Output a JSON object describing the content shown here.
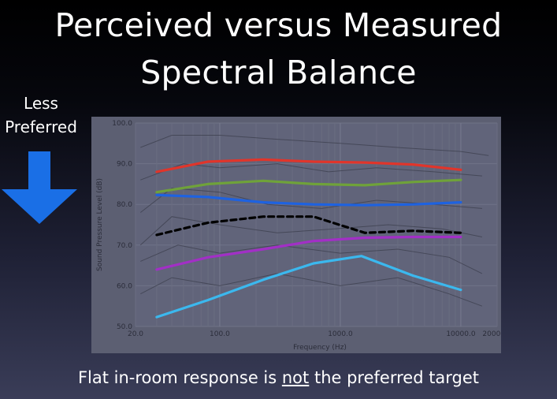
{
  "slide": {
    "title_line1": "Perceived versus Measured",
    "title_line2": "Spectral Balance",
    "side_label_line1": "Less",
    "side_label_line2": "Preferred",
    "arrow_icon": "down-arrow-icon",
    "caption_before": "Flat in-room response is ",
    "caption_emphasis": "not",
    "caption_after": " the preferred target"
  },
  "colors": {
    "background_top": "#000000",
    "background_bottom": "#3a3d58",
    "arrow": "#1a6fe6",
    "plot_background": "#5f6275",
    "traces": "#3a3c4a"
  },
  "chart_data": {
    "type": "line",
    "title": "",
    "xlabel": "Frequency (Hz)",
    "ylabel": "Sound Pressure Level (dB)",
    "xscale": "log",
    "xlim": [
      20,
      20000
    ],
    "ylim": [
      50,
      100
    ],
    "xticks": [
      "20.0",
      "100.0",
      "1000.0",
      "10000.0",
      "20000.0"
    ],
    "xtick_values": [
      20,
      100,
      1000,
      10000,
      20000
    ],
    "yticks": [
      "50.0",
      "60.0",
      "70.0",
      "80.0",
      "90.0",
      "100.0"
    ],
    "ytick_values": [
      50,
      60,
      70,
      80,
      90,
      100
    ],
    "grid": true,
    "series": [
      {
        "color": "#e0352b",
        "dash": false,
        "x": [
          30,
          80,
          230,
          600,
          1600,
          4000,
          10000
        ],
        "y": [
          88,
          90.5,
          91,
          90.5,
          90.3,
          89.8,
          88.5
        ]
      },
      {
        "color": "#6fa23a",
        "dash": false,
        "x": [
          30,
          80,
          230,
          600,
          1600,
          4000,
          10000
        ],
        "y": [
          83,
          85,
          85.8,
          85,
          84.7,
          85.5,
          86
        ]
      },
      {
        "color": "#1e62e0",
        "dash": false,
        "x": [
          30,
          80,
          230,
          600,
          1600,
          4000,
          10000
        ],
        "y": [
          82.3,
          81.8,
          80.5,
          80,
          79.8,
          80,
          80.5
        ]
      },
      {
        "color": "#000000",
        "dash": true,
        "x": [
          30,
          80,
          230,
          600,
          1600,
          4000,
          10000
        ],
        "y": [
          72.5,
          75.5,
          77,
          77,
          73,
          73.5,
          73
        ]
      },
      {
        "color": "#a22fc6",
        "dash": false,
        "x": [
          30,
          80,
          230,
          600,
          1600,
          4000,
          10000
        ],
        "y": [
          64,
          67,
          69,
          71,
          71.8,
          72,
          72
        ]
      },
      {
        "color": "#3bb8ee",
        "dash": false,
        "x": [
          30,
          80,
          230,
          600,
          1500,
          4000,
          10000
        ],
        "y": [
          52.3,
          56.5,
          61.5,
          65.5,
          67.3,
          62.5,
          59
        ]
      }
    ]
  }
}
